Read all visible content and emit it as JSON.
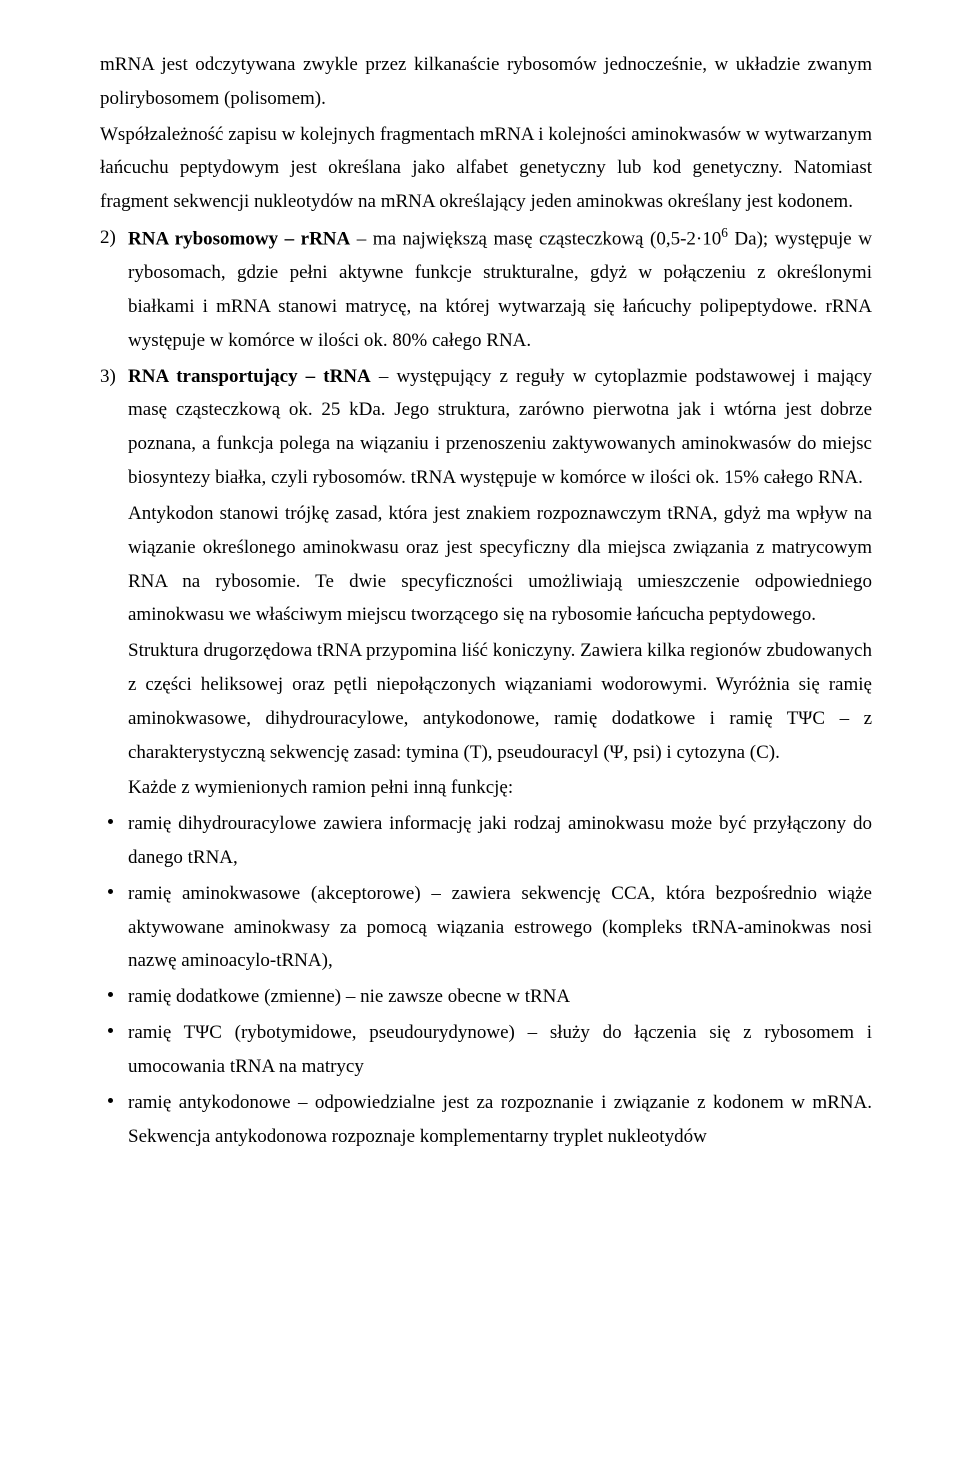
{
  "para1": "mRNA jest odczytywana zwykle przez kilkanaście rybosomów jednocześnie, w układzie zwanym polirybosomem (polisomem).",
  "para2": "Współzależność zapisu w kolejnych fragmentach mRNA i kolejności aminokwasów w wytwarzanym łańcuchu peptydowym jest określana jako alfabet genetyczny lub kod genetyczny. Natomiast fragment sekwencji nukleotydów na mRNA określający jeden aminokwas określany jest kodonem.",
  "item2_num": "2)",
  "item2_lead": "RNA rybosomowy – rRNA",
  "item2_rest": " – ma największą masę cząsteczkową (0,5-2·10",
  "item2_sup": "6",
  "item2_tail": " Da); występuje w rybosomach, gdzie pełni aktywne funkcje strukturalne, gdyż w połączeniu z określonymi białkami i mRNA stanowi matrycę, na której wytwarzają się łańcuchy polipeptydowe. rRNA występuje w komórce w ilości ok. 80% całego RNA.",
  "item3_num": "3)",
  "item3_lead": "RNA transportujący – tRNA",
  "item3_rest": " – występujący z reguły w cytoplazmie podstawowej i mający masę cząsteczkową ok. 25 kDa. Jego struktura, zarówno pierwotna jak i wtórna jest dobrze poznana, a funkcja polega na wiązaniu i przenoszeniu zaktywowanych aminokwasów do miejsc biosyntezy białka, czyli rybosomów. tRNA występuje w komórce w ilości ok. 15% całego RNA.",
  "ind1": "Antykodon stanowi trójkę zasad, która jest znakiem rozpoznawczym tRNA, gdyż ma wpływ na wiązanie określonego aminokwasu oraz jest specyficzny dla miejsca związania z matrycowym RNA na rybosomie. Te dwie specyficzności umożliwiają umieszczenie odpowiedniego aminokwasu we właściwym miejscu tworzącego się na rybosomie łańcucha peptydowego.",
  "ind2": "Struktura drugorzędowa tRNA przypomina liść koniczyny. Zawiera kilka regionów zbudowanych z części heliksowej oraz pętli niepołączonych wiązaniami wodorowymi. Wyróżnia się ramię aminokwasowe, dihydrouracylowe, antykodonowe, ramię dodatkowe i ramię TΨC – z charakterystyczną sekwencję zasad: tymina (T), pseudouracyl (Ψ, psi) i cytozyna (C).",
  "ind3": "Każde z wymienionych ramion pełni inną funkcję:",
  "b1": "ramię dihydrouracylowe zawiera informację jaki rodzaj aminokwasu może być przyłączony do danego tRNA,",
  "b2": "ramię aminokwasowe (akceptorowe) – zawiera sekwencję CCA, która bezpośrednio wiąże aktywowane aminokwasy za pomocą wiązania estrowego (kompleks tRNA-aminokwas nosi nazwę aminoacylo-tRNA),",
  "b3": "ramię dodatkowe (zmienne) – nie zawsze obecne w tRNA",
  "b4": "ramię TΨC (rybotymidowe, pseudourydynowe) – służy do łączenia się z rybosomem i umocowania tRNA na matrycy",
  "b5": "ramię antykodonowe – odpowiedzialne jest za rozpoznanie i związanie z kodonem w mRNA. Sekwencja antykodonowa rozpoznaje komplementarny tryplet nukleotydów"
}
